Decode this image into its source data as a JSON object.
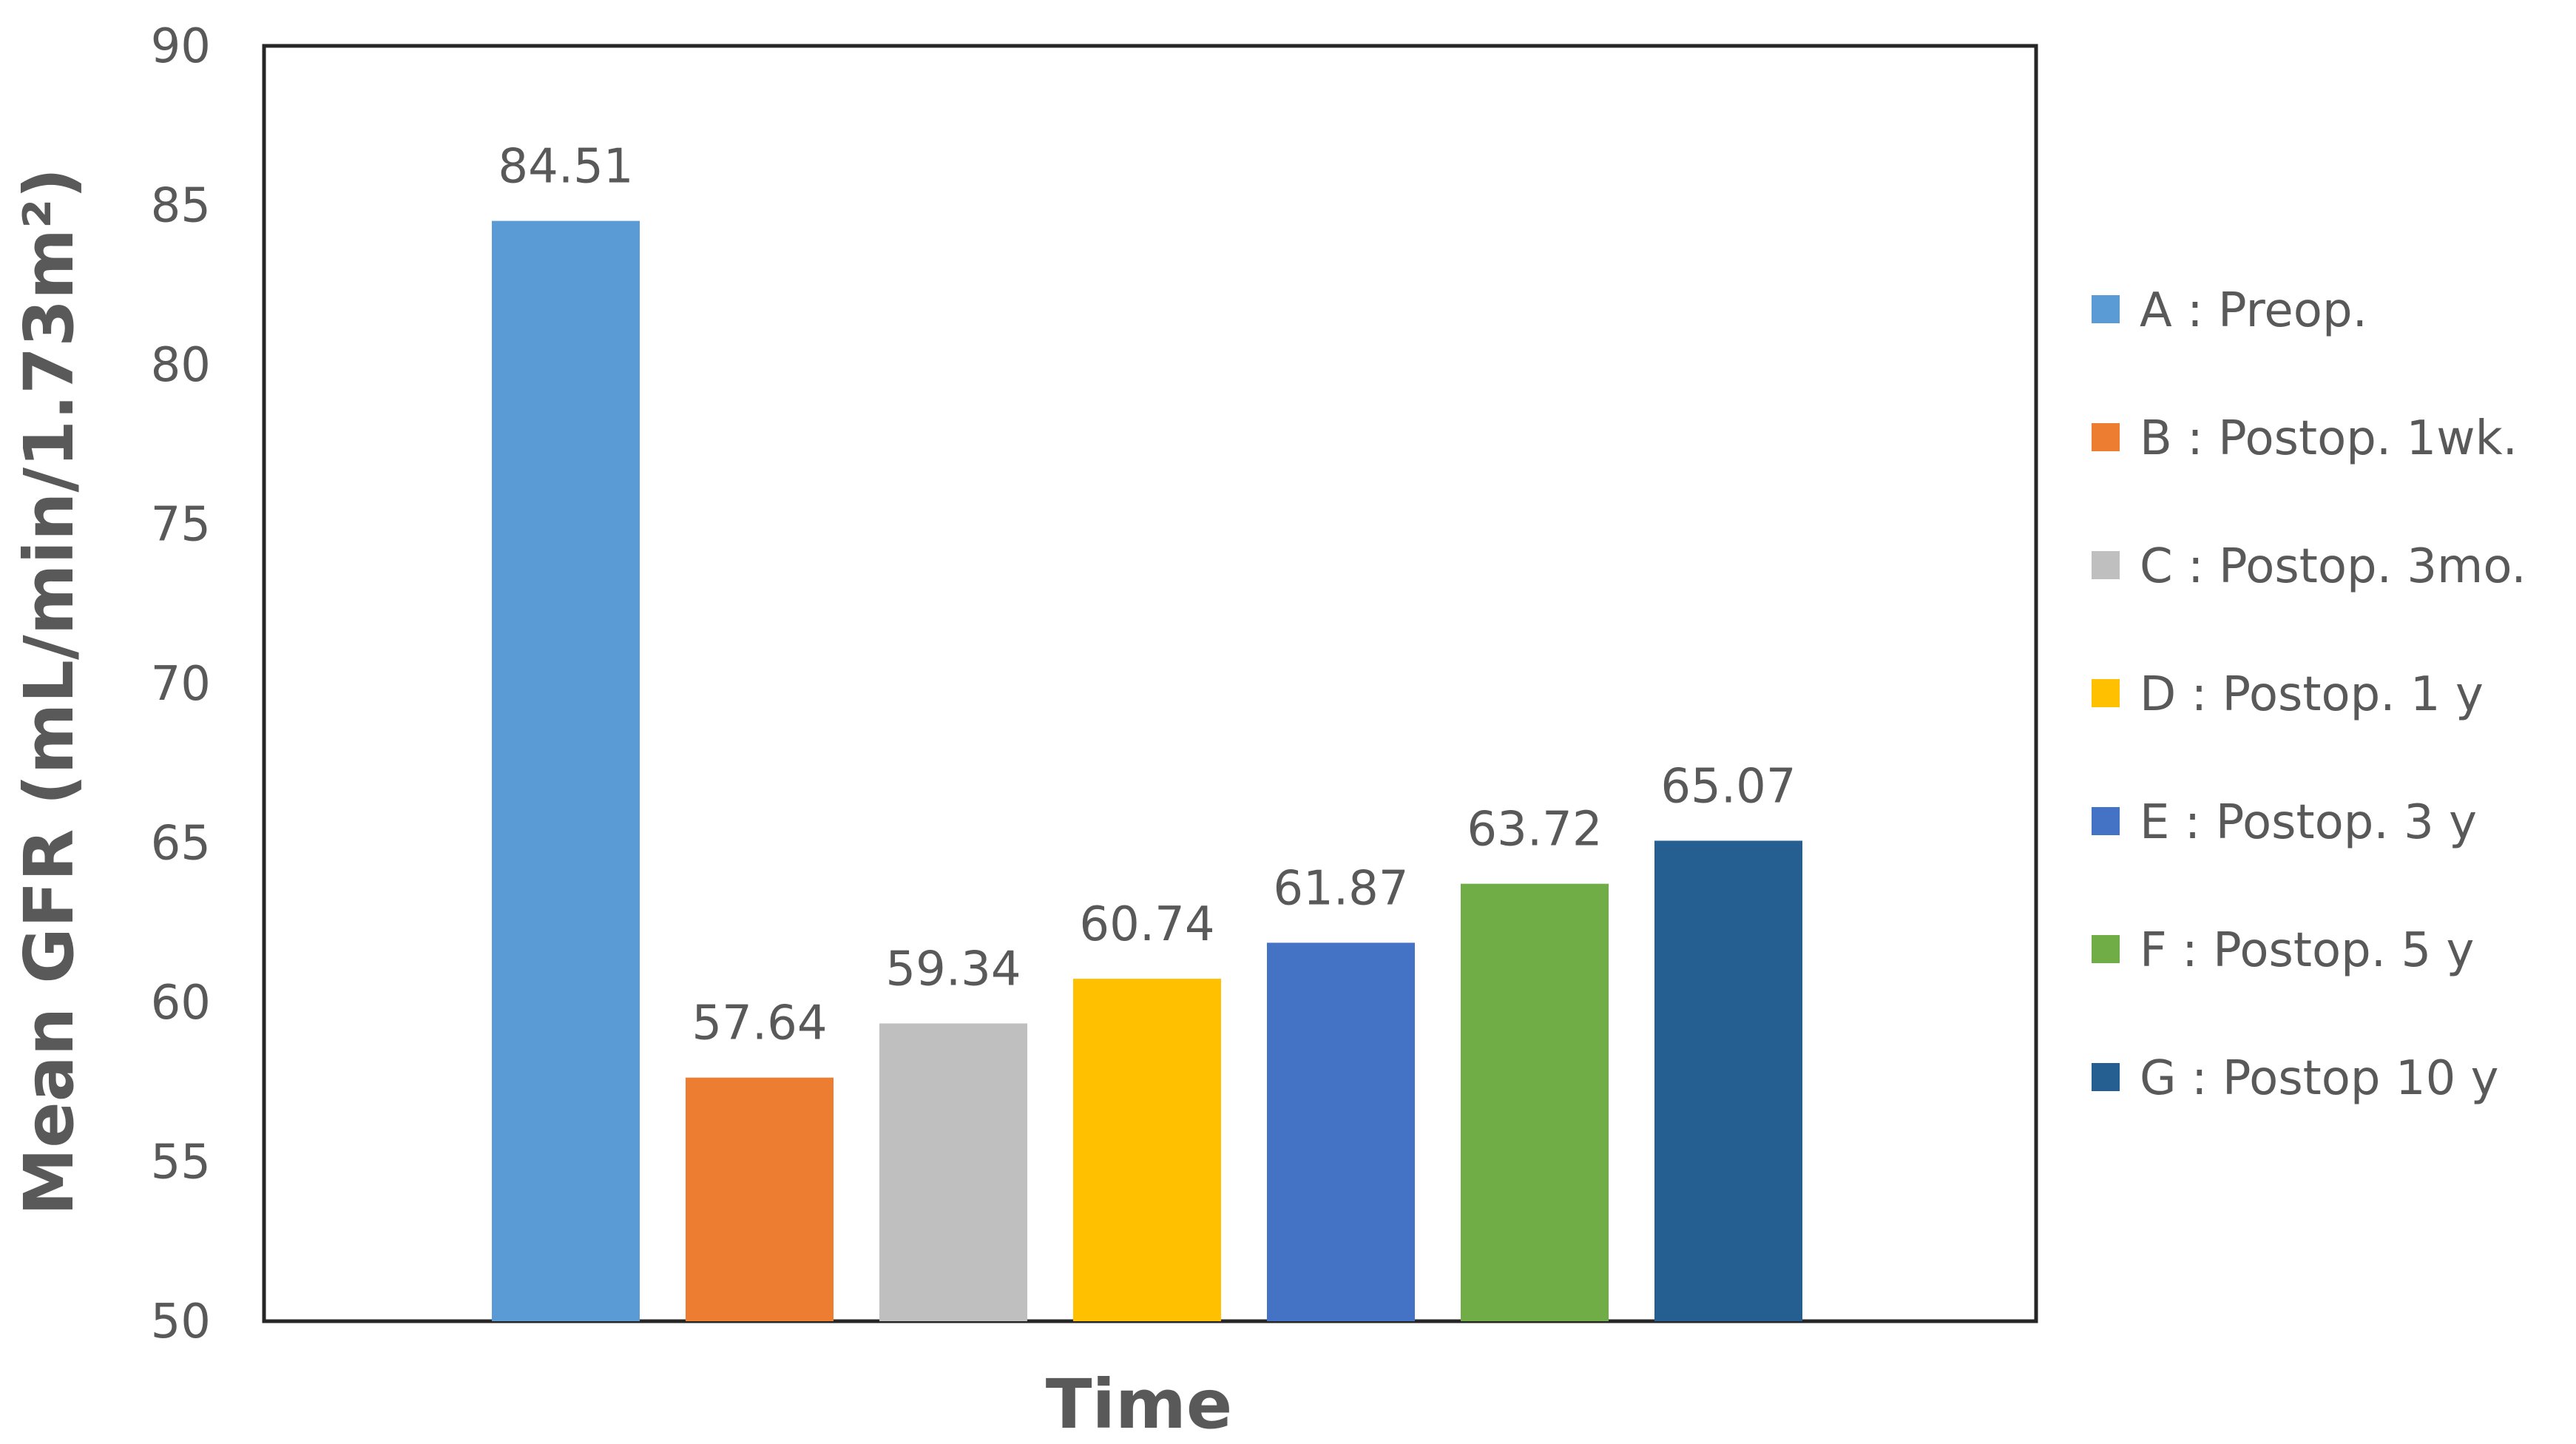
{
  "chart_data": {
    "type": "bar",
    "xlabel": "Time",
    "ylabel": "Mean GFR (mL/min/1.73m²)",
    "ylim": [
      50,
      90
    ],
    "yticks": [
      50,
      55,
      60,
      65,
      70,
      75,
      80,
      85,
      90
    ],
    "grid": false,
    "legend_position": "right",
    "series": [
      {
        "name": "A : Preop.",
        "value": 84.51,
        "label": "84.51",
        "color": "#5b9bd5"
      },
      {
        "name": "B : Postop. 1wk.",
        "value": 57.64,
        "label": "57.64",
        "color": "#ed7d31"
      },
      {
        "name": "C : Postop. 3mo.",
        "value": 59.34,
        "label": "59.34",
        "color": "#bfbfbf"
      },
      {
        "name": "D : Postop. 1 y",
        "value": 60.74,
        "label": "60.74",
        "color": "#ffc000"
      },
      {
        "name": "E : Postop. 3 y",
        "value": 61.87,
        "label": "61.87",
        "color": "#4472c4"
      },
      {
        "name": "F : Postop. 5 y",
        "value": 63.72,
        "label": "63.72",
        "color": "#70ad47"
      },
      {
        "name": "G : Postop 10 y",
        "value": 65.07,
        "label": "65.07",
        "color": "#255e91"
      }
    ]
  }
}
